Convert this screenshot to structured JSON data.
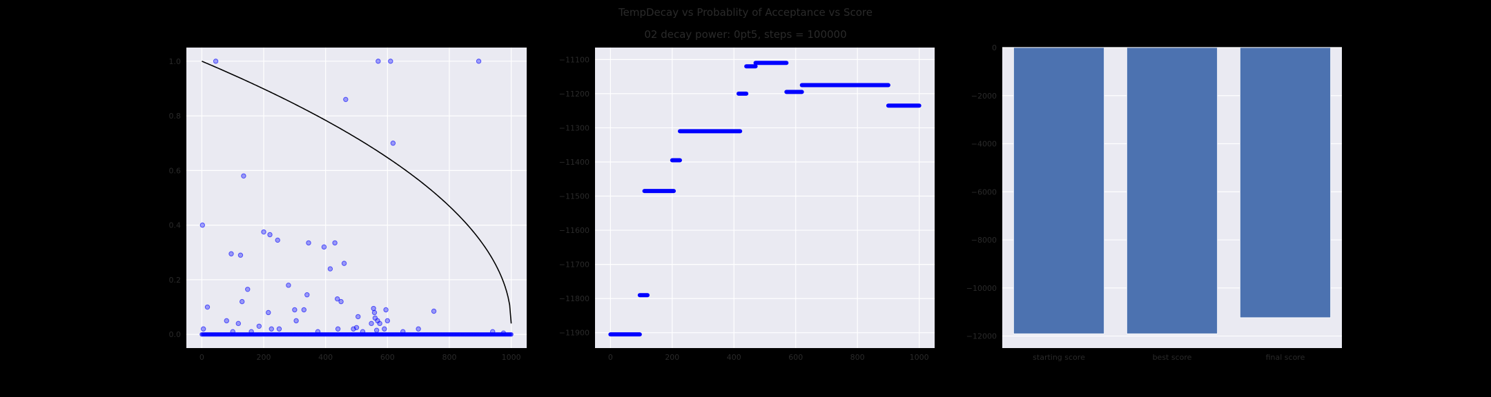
{
  "figure": {
    "title": "TempDecay vs Probablity of Acceptance vs Score",
    "subtitle": "02 decay power: 0pt5, steps = 100000"
  },
  "colors": {
    "background": "#000000",
    "panel": "#EAEAF2",
    "grid": "#FFFFFF",
    "scatter": "#0000FF",
    "curve": "#000000",
    "bar": "#4C72B0",
    "text": "#2A2A2A"
  },
  "chart_data": [
    {
      "type": "scatter",
      "curve": {
        "label": "",
        "power": 0.5,
        "x_start": 0,
        "x_end": 1000,
        "y_start": 1.0,
        "y_end": 0.04
      },
      "points": [
        [
          2,
          0.4
        ],
        [
          5,
          0.02
        ],
        [
          18,
          0.1
        ],
        [
          45,
          1.0
        ],
        [
          80,
          0.05
        ],
        [
          95,
          0.295
        ],
        [
          100,
          0.01
        ],
        [
          118,
          0.04
        ],
        [
          125,
          0.29
        ],
        [
          130,
          0.12
        ],
        [
          135,
          0.58
        ],
        [
          148,
          0.165
        ],
        [
          160,
          0.01
        ],
        [
          185,
          0.03
        ],
        [
          200,
          0.375
        ],
        [
          215,
          0.08
        ],
        [
          220,
          0.365
        ],
        [
          225,
          0.02
        ],
        [
          245,
          0.345
        ],
        [
          250,
          0.02
        ],
        [
          280,
          0.18
        ],
        [
          300,
          0.09
        ],
        [
          305,
          0.05
        ],
        [
          330,
          0.09
        ],
        [
          340,
          0.145
        ],
        [
          345,
          0.335
        ],
        [
          375,
          0.01
        ],
        [
          395,
          0.32
        ],
        [
          415,
          0.24
        ],
        [
          430,
          0.335
        ],
        [
          438,
          0.13
        ],
        [
          440,
          0.02
        ],
        [
          450,
          0.12
        ],
        [
          460,
          0.26
        ],
        [
          465,
          0.86
        ],
        [
          490,
          0.02
        ],
        [
          500,
          0.025
        ],
        [
          505,
          0.065
        ],
        [
          520,
          0.01
        ],
        [
          548,
          0.04
        ],
        [
          555,
          0.095
        ],
        [
          558,
          0.08
        ],
        [
          560,
          0.06
        ],
        [
          565,
          0.015
        ],
        [
          568,
          0.05
        ],
        [
          570,
          1.0
        ],
        [
          575,
          0.04
        ],
        [
          590,
          0.02
        ],
        [
          595,
          0.09
        ],
        [
          600,
          0.05
        ],
        [
          610,
          1.0
        ],
        [
          618,
          0.7
        ],
        [
          650,
          0.01
        ],
        [
          700,
          0.02
        ],
        [
          750,
          0.085
        ],
        [
          895,
          1.0
        ],
        [
          940,
          0.01
        ],
        [
          975,
          0.005
        ]
      ],
      "x_range": [
        0,
        1000
      ],
      "xlim": [
        -50,
        1050
      ],
      "ylim": [
        -0.05,
        1.05
      ],
      "x_ticks": [
        0,
        200,
        400,
        600,
        800,
        1000
      ],
      "y_ticks": [
        0.0,
        0.2,
        0.4,
        0.6,
        0.8,
        1.0
      ],
      "x_tick_labels": [
        "0",
        "200",
        "400",
        "600",
        "800",
        "1000"
      ],
      "y_tick_labels": [
        "0.0",
        "0.2",
        "0.4",
        "0.6",
        "0.8",
        "1.0"
      ],
      "grid": true
    },
    {
      "type": "scatter",
      "segments": [
        [
          0,
          95,
          -11905
        ],
        [
          95,
          120,
          -11790
        ],
        [
          110,
          205,
          -11485
        ],
        [
          200,
          225,
          -11395
        ],
        [
          225,
          420,
          -11310
        ],
        [
          415,
          440,
          -11200
        ],
        [
          440,
          470,
          -11120
        ],
        [
          470,
          570,
          -11110
        ],
        [
          570,
          620,
          -11195
        ],
        [
          620,
          900,
          -11175
        ],
        [
          900,
          1000,
          -11235
        ]
      ],
      "xlim": [
        -50,
        1050
      ],
      "ylim": [
        -11945,
        -11065
      ],
      "x_ticks": [
        0,
        200,
        400,
        600,
        800,
        1000
      ],
      "y_ticks": [
        -11900,
        -11800,
        -11700,
        -11600,
        -11500,
        -11400,
        -11300,
        -11200,
        -11100
      ],
      "x_tick_labels": [
        "0",
        "200",
        "400",
        "600",
        "800",
        "1000"
      ],
      "y_tick_labels": [
        "−11900",
        "−11800",
        "−11700",
        "−11600",
        "−11500",
        "−11400",
        "−11300",
        "−11200",
        "−11100"
      ],
      "grid": true
    },
    {
      "type": "bar",
      "categories": [
        "starting score",
        "best score",
        "final score"
      ],
      "values": [
        -11905,
        -11905,
        -11235
      ],
      "ylim": [
        -12500,
        0
      ],
      "y_ticks": [
        0,
        -2000,
        -4000,
        -6000,
        -8000,
        -10000,
        -12000
      ],
      "y_tick_labels": [
        "0",
        "−2000",
        "−4000",
        "−6000",
        "−8000",
        "−10000",
        "−12000"
      ],
      "grid": true
    }
  ]
}
